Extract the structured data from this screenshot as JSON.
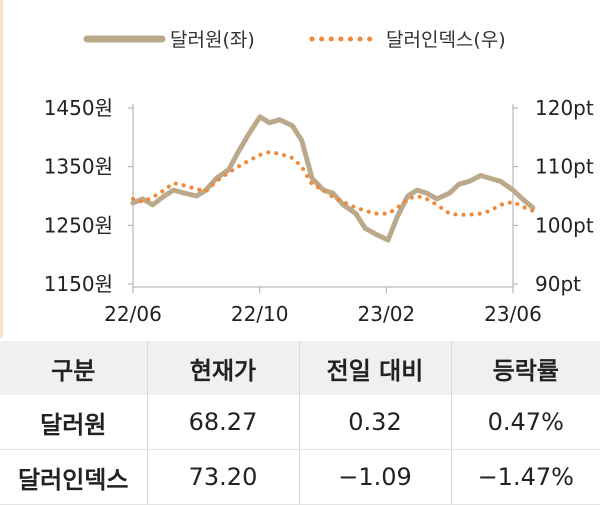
{
  "chart_data": {
    "type": "line",
    "legend": [
      {
        "name": "달러원(좌)",
        "color": "#bba98b",
        "style": "solid"
      },
      {
        "name": "달러인덱스(우)",
        "color": "#ef8a3c",
        "style": "dotted"
      }
    ],
    "legend_position": "top-center",
    "x_ticks": [
      "22/06",
      "22/10",
      "23/02",
      "23/06"
    ],
    "x_range": [
      "2022-06",
      "2023-06"
    ],
    "y_left": {
      "ticks": [
        "1450원",
        "1350원",
        "1250원",
        "1150원"
      ],
      "range": [
        1150,
        1450
      ],
      "unit": "원"
    },
    "y_right": {
      "ticks": [
        "120pt",
        "110pt",
        "100pt",
        "90pt"
      ],
      "range": [
        90,
        120
      ],
      "unit": "pt"
    },
    "grid": false,
    "series": [
      {
        "name": "달러원(좌)",
        "axis": "left",
        "values": [
          [
            "2022-06-01",
            1288
          ],
          [
            "2022-06-10",
            1295
          ],
          [
            "2022-06-20",
            1285
          ],
          [
            "2022-07-01",
            1300
          ],
          [
            "2022-07-10",
            1310
          ],
          [
            "2022-07-20",
            1305
          ],
          [
            "2022-08-01",
            1300
          ],
          [
            "2022-08-10",
            1310
          ],
          [
            "2022-08-20",
            1330
          ],
          [
            "2022-09-01",
            1345
          ],
          [
            "2022-09-10",
            1375
          ],
          [
            "2022-09-20",
            1405
          ],
          [
            "2022-10-01",
            1435
          ],
          [
            "2022-10-10",
            1425
          ],
          [
            "2022-10-20",
            1430
          ],
          [
            "2022-11-01",
            1420
          ],
          [
            "2022-11-10",
            1395
          ],
          [
            "2022-11-20",
            1330
          ],
          [
            "2022-12-01",
            1310
          ],
          [
            "2022-12-10",
            1305
          ],
          [
            "2022-12-20",
            1285
          ],
          [
            "2023-01-01",
            1270
          ],
          [
            "2023-01-10",
            1245
          ],
          [
            "2023-01-20",
            1235
          ],
          [
            "2023-02-01",
            1225
          ],
          [
            "2023-02-10",
            1265
          ],
          [
            "2023-02-20",
            1300
          ],
          [
            "2023-03-01",
            1310
          ],
          [
            "2023-03-10",
            1305
          ],
          [
            "2023-03-20",
            1295
          ],
          [
            "2023-04-01",
            1305
          ],
          [
            "2023-04-10",
            1320
          ],
          [
            "2023-04-20",
            1325
          ],
          [
            "2023-05-01",
            1335
          ],
          [
            "2023-05-10",
            1330
          ],
          [
            "2023-05-20",
            1325
          ],
          [
            "2023-06-01",
            1310
          ],
          [
            "2023-06-10",
            1295
          ],
          [
            "2023-06-20",
            1280
          ]
        ]
      },
      {
        "name": "달러인덱스(우)",
        "axis": "right",
        "values": [
          [
            "2022-06-01",
            104.5
          ],
          [
            "2022-06-10",
            104.0
          ],
          [
            "2022-06-20",
            104.8
          ],
          [
            "2022-07-01",
            106.0
          ],
          [
            "2022-07-10",
            107.2
          ],
          [
            "2022-07-20",
            106.8
          ],
          [
            "2022-08-01",
            106.2
          ],
          [
            "2022-08-10",
            105.8
          ],
          [
            "2022-08-20",
            107.5
          ],
          [
            "2022-09-01",
            109.0
          ],
          [
            "2022-09-10",
            110.0
          ],
          [
            "2022-09-20",
            111.0
          ],
          [
            "2022-10-01",
            112.0
          ],
          [
            "2022-10-10",
            112.5
          ],
          [
            "2022-10-20",
            112.2
          ],
          [
            "2022-11-01",
            111.5
          ],
          [
            "2022-11-10",
            110.0
          ],
          [
            "2022-11-20",
            107.0
          ],
          [
            "2022-12-01",
            106.0
          ],
          [
            "2022-12-10",
            104.8
          ],
          [
            "2022-12-20",
            104.0
          ],
          [
            "2023-01-01",
            103.0
          ],
          [
            "2023-01-10",
            102.5
          ],
          [
            "2023-01-20",
            102.0
          ],
          [
            "2023-02-01",
            102.0
          ],
          [
            "2023-02-10",
            103.0
          ],
          [
            "2023-02-20",
            104.5
          ],
          [
            "2023-03-01",
            105.0
          ],
          [
            "2023-03-10",
            104.5
          ],
          [
            "2023-03-20",
            103.5
          ],
          [
            "2023-04-01",
            102.0
          ],
          [
            "2023-04-10",
            101.8
          ],
          [
            "2023-04-20",
            101.8
          ],
          [
            "2023-05-01",
            102.0
          ],
          [
            "2023-05-10",
            102.5
          ],
          [
            "2023-05-20",
            103.5
          ],
          [
            "2023-06-01",
            104.0
          ],
          [
            "2023-06-10",
            103.2
          ],
          [
            "2023-06-20",
            102.5
          ]
        ]
      }
    ]
  },
  "table": {
    "headers": [
      "구분",
      "현재가",
      "전일 대비",
      "등락률"
    ],
    "rows": [
      [
        "달러원",
        "68.27",
        "0.32",
        "0.47%"
      ],
      [
        "달러인덱스",
        "73.20",
        "−1.09",
        "−1.47%"
      ]
    ]
  }
}
